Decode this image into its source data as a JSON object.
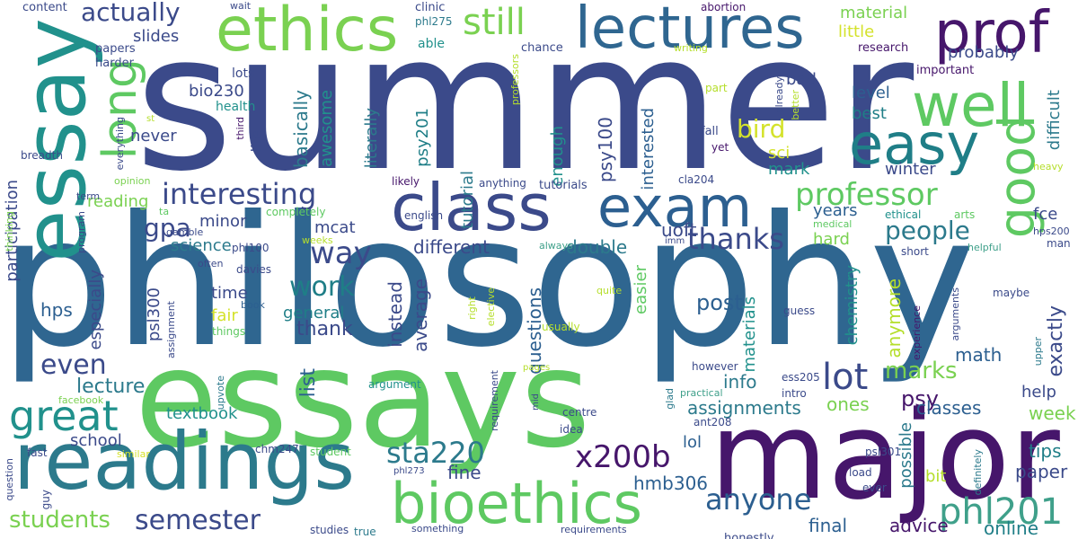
{
  "words": {
    "summer": "summer",
    "philosophy": "philosophy",
    "essays": "essays",
    "major": "major",
    "essay": "essay",
    "readings": "readings",
    "class": "class",
    "ethics": "ethics",
    "lectures": "lectures",
    "prof": "prof",
    "bioethics": "bioethics",
    "exam": "exam",
    "easy": "easy",
    "long": "long",
    "good": "good",
    "well": "well",
    "great": "great",
    "still": "still",
    "interesting": "interesting",
    "professor": "professor",
    "phl201": "phl201",
    "semester": "semester",
    "students": "students",
    "x200b": "x200b",
    "anyone": "anyone",
    "sta220": "sta220",
    "lot": "lot",
    "thanks": "thanks",
    "people": "people",
    "work": "work",
    "way": "way",
    "even": "even",
    "marks": "marks",
    "actually": "actually",
    "bird": "bird",
    "gpa": "gpa",
    "hps": "hps",
    "psy": "psy",
    "post": "post",
    "week": "week",
    "advice": "advice",
    "final": "final",
    "online": "online",
    "paper": "paper",
    "tips": "tips",
    "school": "school",
    "lol": "lol",
    "assignments": "assignments",
    "ones": "ones",
    "classes": "classes",
    "help": "help",
    "math": "math",
    "info": "info",
    "lecture": "lecture",
    "textbook": "textbook",
    "list": "list",
    "thank": "thank",
    "general": "general",
    "average": "average",
    "questions": "questions",
    "instead": "instead",
    "different": "different",
    "double": "double",
    "uoft": "uoft",
    "hmb306": "hmb306",
    "fine": "fine",
    "mcat": "mcat",
    "science": "science",
    "minor": "minor",
    "time": "time",
    "fair": "fair",
    "reading": "reading",
    "especially": "especially",
    "never": "never",
    "bio230": "bio230",
    "slides": "slides",
    "psy201": "psy201",
    "psy100": "psy100",
    "literally": "literally",
    "basically": "basically",
    "awesome": "awesome",
    "tutorial": "tutorial",
    "enough": "enough",
    "interested": "interested",
    "easier": "easier",
    "materials": "materials",
    "material": "material",
    "little": "little",
    "probably": "probably",
    "bad": "bad",
    "level": "level",
    "best": "best",
    "sci": "sci",
    "mark": "mark",
    "winter": "winter",
    "fce": "fce",
    "years": "years",
    "hard": "hard",
    "chemistry": "chemistry",
    "anymore": "anymore",
    "exactly": "exactly",
    "difficult": "difficult",
    "possible": "possible",
    "bit": "bit",
    "psl300": "psl300",
    "able": "able",
    "participation": "participation",
    "life": "life",
    "health": "health",
    "lots": "lots",
    "content": "content",
    "papers": "papers",
    "harder": "harder",
    "phl275": "phl275",
    "clinic": "clinic",
    "wait": "wait",
    "abortion": "abortion",
    "chance": "chance",
    "writing": "writing",
    "research": "research",
    "important": "important",
    "part": "part",
    "already": "already",
    "better": "better",
    "fall": "fall",
    "yet": "yet",
    "professors": "professors",
    "cla204": "cla204",
    "tutorials": "tutorials",
    "anything": "anything",
    "likely": "likely",
    "english": "english",
    "phl100": "phl100",
    "davies": "davies",
    "completely": "completely",
    "gamble": "gamble",
    "weeks": "weeks",
    "often": "often",
    "book": "book",
    "things": "things",
    "upvote": "upvote",
    "assignment": "assignment",
    "program": "program",
    "thinking": "thinking",
    "opinion": "opinion",
    "breadth": "breadth",
    "term": "term",
    "everything": "everything",
    "third": "third",
    "st": "st",
    "ta": "ta",
    "facebook": "facebook",
    "fast": "fast",
    "similar": "similar",
    "student": "student",
    "chm247": "chm247",
    "question": "question",
    "guy": "guy",
    "studies": "studies",
    "true": "true",
    "something": "something",
    "requirements": "requirements",
    "phl273": "phl273",
    "requirement": "requirement",
    "argument": "argument",
    "mid": "mid",
    "pages": "pages",
    "idea": "idea",
    "centre": "centre",
    "ant208": "ant208",
    "practical": "practical",
    "glad": "glad",
    "however": "however",
    "intro": "intro",
    "ess205": "ess205",
    "psl301": "psl301",
    "load": "load",
    "ever": "ever",
    "definitely": "definitely",
    "honestly": "honestly",
    "heavy": "heavy",
    "medical": "medical",
    "ethical": "ethical",
    "arts": "arts",
    "hps200": "hps200",
    "man": "man",
    "short": "short",
    "helpful": "helpful",
    "maybe": "maybe",
    "experience": "experience",
    "arguments": "arguments",
    "upper": "upper",
    "guess": "guess",
    "imm": "imm",
    "quite": "quite",
    "right": "right",
    "elective": "elective",
    "usually": "usually",
    "always": "always"
  },
  "colors": {
    "navy": "#3b4a8a",
    "deep_purple": "#46166b",
    "steel_blue": "#2f6690",
    "teal": "#21918c",
    "teal_dark": "#1f7e87",
    "green": "#5ec962",
    "light_green": "#7ad151",
    "yellow_green": "#b5de2b"
  }
}
